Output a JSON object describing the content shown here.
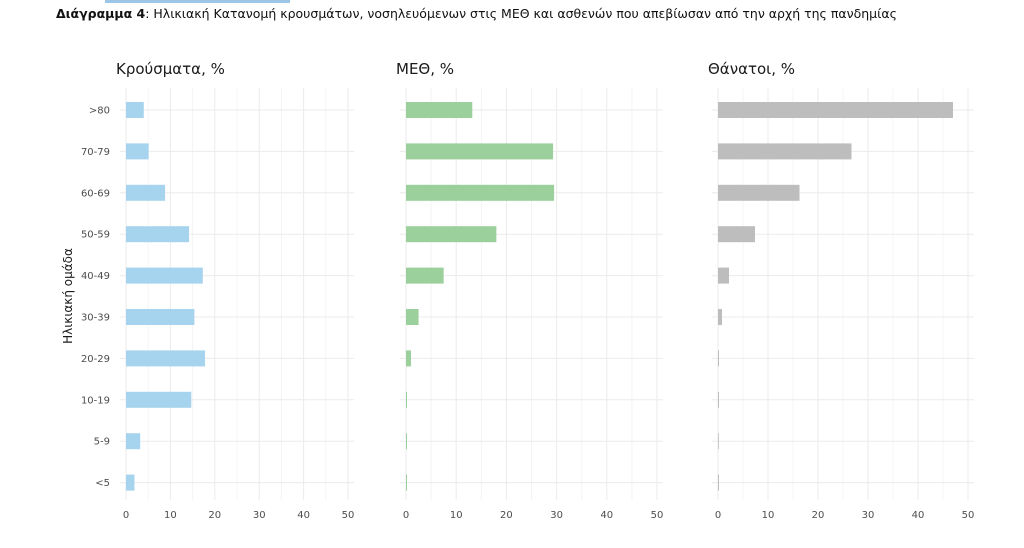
{
  "caption": {
    "bold": "Διάγραμμα 4",
    "text": ": Ηλικιακή Κατανομή κρουσμάτων, νοσηλευόμενων στις ΜΕΘ και ασθενών που απεβίωσαν από την αρχή της πανδημίας"
  },
  "chart_data": [
    {
      "type": "bar",
      "orientation": "horizontal",
      "title": "Κρούσματα, %",
      "ylabel": "Ηλικιακή ομάδα",
      "categories": [
        ">80",
        "70-79",
        "60-69",
        "50-59",
        "40-49",
        "30-39",
        "20-29",
        "10-19",
        "5-9",
        "<5"
      ],
      "values": [
        4,
        5.1,
        8.8,
        14.2,
        17.3,
        15.4,
        17.8,
        14.7,
        3.2,
        1.9
      ],
      "xlim": [
        0,
        50
      ],
      "xticks": [
        "0",
        "10",
        "20",
        "30",
        "40",
        "50"
      ],
      "color": "#a6d3ee",
      "grid": true
    },
    {
      "type": "bar",
      "orientation": "horizontal",
      "title": "ΜΕΘ, %",
      "categories": [
        ">80",
        "70-79",
        "60-69",
        "50-59",
        "40-49",
        "30-39",
        "20-29",
        "10-19",
        "5-9",
        "<5"
      ],
      "values": [
        13.2,
        29.3,
        29.5,
        18,
        7.5,
        2.5,
        1,
        0.2,
        0.2,
        0.2
      ],
      "xlim": [
        0,
        50
      ],
      "xticks": [
        "0",
        "10",
        "20",
        "30",
        "40",
        "50"
      ],
      "color": "#9bcf9b",
      "grid": true
    },
    {
      "type": "bar",
      "orientation": "horizontal",
      "title": "Θάνατοι, %",
      "categories": [
        ">80",
        "70-79",
        "60-69",
        "50-59",
        "40-49",
        "30-39",
        "20-29",
        "10-19",
        "5-9",
        "<5"
      ],
      "values": [
        47,
        26.7,
        16.3,
        7.4,
        2.2,
        0.8,
        0.1,
        0.1,
        0,
        0.1
      ],
      "xlim": [
        0,
        50
      ],
      "xticks": [
        "0",
        "10",
        "20",
        "30",
        "40",
        "50"
      ],
      "color": "#bdbdbd",
      "grid": true
    }
  ]
}
